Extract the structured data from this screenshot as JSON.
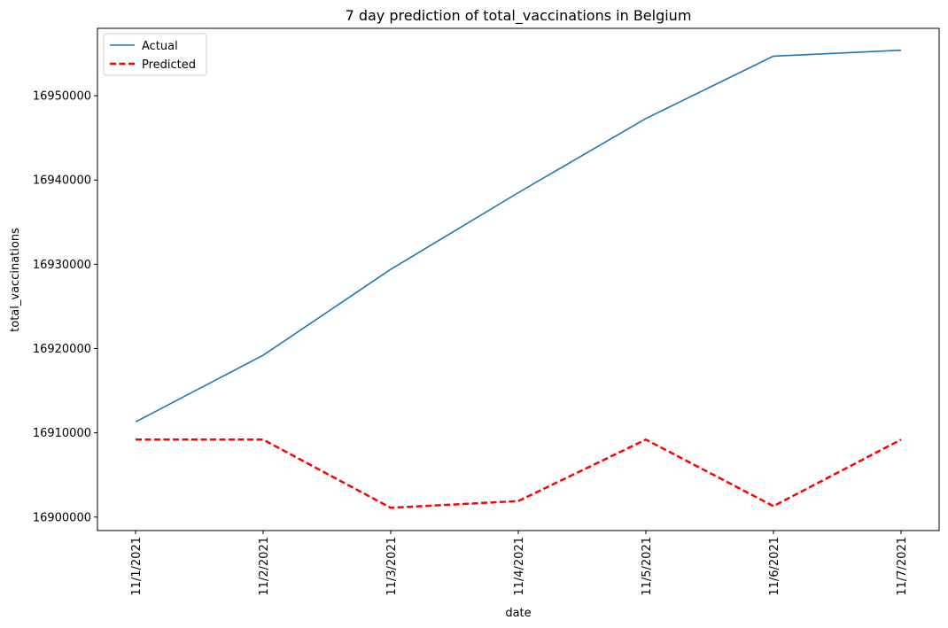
{
  "chart_data": {
    "type": "line",
    "title": "7 day prediction of total_vaccinations in Belgium",
    "xlabel": "date",
    "ylabel": "total_vaccinations",
    "categories": [
      "11/1/2021",
      "11/2/2021",
      "11/3/2021",
      "11/4/2021",
      "11/5/2021",
      "11/6/2021",
      "11/7/2021"
    ],
    "ylim": [
      16898400,
      16958000
    ],
    "yticks": [
      16900000,
      16910000,
      16920000,
      16930000,
      16940000,
      16950000
    ],
    "yticklabels": [
      "16900000",
      "16910000",
      "16920000",
      "16930000",
      "16940000",
      "16950000"
    ],
    "series": [
      {
        "name": "Actual",
        "color": "#1f77b4",
        "style": "solid",
        "values": [
          16911300,
          16919200,
          16929400,
          16938500,
          16947300,
          16954700,
          16955400
        ]
      },
      {
        "name": "Predicted",
        "color": "#ff0000",
        "style": "dashed",
        "values": [
          16909200,
          16909200,
          16901100,
          16901900,
          16909200,
          16901300,
          16909200
        ]
      }
    ],
    "legend_position": "top-left",
    "grid": false
  }
}
